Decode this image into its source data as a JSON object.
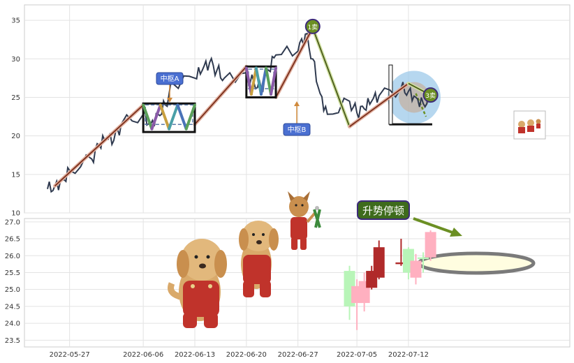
{
  "colors": {
    "price_line": "#2f3a4f",
    "trend_line": "#7a2e1a",
    "pivot_box": "#111111",
    "pivot_label_bg": "#4a6fd1",
    "signal_bg": "#6b8f23",
    "signal_border": "#3d2a7a",
    "trend_label_bg": "#3e6b1c",
    "arrow": "#6b8f23",
    "ellipse": "#7a7a7a",
    "ellipse_fill": "#fffde0",
    "candle_up_light": "#b8f5b8",
    "candle_down_light": "#ffb0c0",
    "candle_dark": "#b02a2a",
    "circle_fill": "#9ec9ea"
  },
  "top_chart": {
    "ylim": [
      10,
      37
    ],
    "yticks": [
      "10",
      "15",
      "20",
      "25",
      "30",
      "35"
    ],
    "pivot_a_label": "中枢A",
    "pivot_b_label": "中枢B",
    "signal_1": "1卖",
    "signal_3": "3卖"
  },
  "bottom_chart": {
    "ylim": [
      23.3,
      27.1
    ],
    "yticks": [
      "23.5",
      "24.0",
      "24.5",
      "25.0",
      "25.5",
      "26.0",
      "26.5",
      "27.0"
    ],
    "trend_label": "升势停顿"
  },
  "x_axis": {
    "ticks": [
      "2022-05-27",
      "2022-06-06",
      "2022-06-13",
      "2022-06-20",
      "2022-06-27",
      "2022-07-05",
      "2022-07-12"
    ]
  },
  "chart_data": [
    {
      "type": "line",
      "title": "",
      "xlabel": "",
      "ylabel": "",
      "ylim": [
        10,
        37
      ],
      "grid": true,
      "x": [
        "2022-05-24",
        "2022-05-25",
        "2022-05-26",
        "2022-05-27",
        "2022-05-30",
        "2022-05-31",
        "2022-06-01",
        "2022-06-02",
        "2022-06-03",
        "2022-06-06",
        "2022-06-07",
        "2022-06-08",
        "2022-06-09",
        "2022-06-10",
        "2022-06-13",
        "2022-06-14",
        "2022-06-15",
        "2022-06-16",
        "2022-06-17",
        "2022-06-20",
        "2022-06-21",
        "2022-06-22",
        "2022-06-23",
        "2022-06-24",
        "2022-06-27",
        "2022-06-28",
        "2022-06-29",
        "2022-06-30",
        "2022-07-01",
        "2022-07-04",
        "2022-07-05",
        "2022-07-06",
        "2022-07-07",
        "2022-07-08",
        "2022-07-11",
        "2022-07-12",
        "2022-07-13",
        "2022-07-14",
        "2022-07-15"
      ],
      "series": [
        {
          "values": [
            13.1,
            13.5,
            14.2,
            15.5,
            17.0,
            18.8,
            19.6,
            19.4,
            21.5,
            22.8,
            21.5,
            22.8,
            24.0,
            26.8,
            27.5,
            28.5,
            29.5,
            28.5,
            27.5,
            28.2,
            27.0,
            26.2,
            28.5,
            30.5,
            31.0,
            33.2,
            30.0,
            25.5,
            22.8,
            24.5,
            23.0,
            23.5,
            24.5,
            25.2,
            26.2,
            25.8,
            25.0,
            24.2,
            25.0
          ]
        }
      ],
      "segments": [
        {
          "from": [
            "2022-05-25",
            13.5
          ],
          "to": [
            "2022-06-06",
            24.0
          ]
        },
        {
          "from": [
            "2022-06-13",
            21.5
          ],
          "to": [
            "2022-06-20",
            29.0
          ]
        },
        {
          "from": [
            "2022-06-24",
            25.0
          ],
          "to": [
            "2022-06-29",
            34.0
          ]
        },
        {
          "from": [
            "2022-06-29",
            34.0
          ],
          "to": [
            "2022-07-04",
            21.2
          ]
        },
        {
          "from": [
            "2022-07-04",
            21.2
          ],
          "to": [
            "2022-07-12",
            26.8
          ]
        },
        {
          "from": [
            "2022-07-12",
            26.8
          ],
          "to": [
            "2022-07-15",
            25.3
          ]
        }
      ],
      "pivots": [
        {
          "name": "中枢A",
          "x_start": "2022-06-06",
          "x_end": "2022-06-13",
          "low": 20.5,
          "high": 24.2
        },
        {
          "name": "中枢B",
          "x_start": "2022-06-20",
          "x_end": "2022-06-24",
          "low": 25.0,
          "high": 29.0
        }
      ],
      "signals": [
        {
          "label": "1卖",
          "x": "2022-06-29",
          "y": 34.2
        },
        {
          "label": "3卖",
          "x": "2022-07-15",
          "y": 25.3
        }
      ]
    },
    {
      "type": "bar",
      "subtype": "candlestick",
      "title": "",
      "xlabel": "",
      "ylabel": "",
      "ylim": [
        23.3,
        27.1
      ],
      "grid": true,
      "annotation": "升势停顿",
      "candles": [
        {
          "date": "2022-07-04",
          "open": 24.5,
          "close": 25.55,
          "high": 25.7,
          "low": 24.1,
          "style": "up_light"
        },
        {
          "date": "2022-07-05",
          "open": 25.1,
          "close": 24.6,
          "high": 25.3,
          "low": 23.8,
          "style": "down_light"
        },
        {
          "date": "2022-07-06",
          "open": 25.25,
          "close": 24.6,
          "high": 25.5,
          "low": 24.35,
          "style": "down_light"
        },
        {
          "date": "2022-07-07",
          "open": 25.05,
          "close": 25.55,
          "high": 25.7,
          "low": 25.0,
          "style": "dark"
        },
        {
          "date": "2022-07-08",
          "open": 26.25,
          "close": 25.35,
          "high": 26.45,
          "low": 25.3,
          "style": "dark"
        },
        {
          "date": "2022-07-11",
          "open": 25.8,
          "close": 25.75,
          "high": 26.5,
          "low": 25.7,
          "style": "dark"
        },
        {
          "date": "2022-07-12",
          "open": 25.5,
          "close": 26.2,
          "high": 26.25,
          "low": 25.3,
          "style": "up_light"
        },
        {
          "date": "2022-07-13",
          "open": 25.85,
          "close": 25.35,
          "high": 26.05,
          "low": 25.15,
          "style": "down_light"
        },
        {
          "date": "2022-07-14",
          "open": 25.9,
          "close": 25.95,
          "high": 26.1,
          "low": 25.5,
          "style": "up_light"
        },
        {
          "date": "2022-07-15",
          "open": 26.7,
          "close": 25.95,
          "high": 26.75,
          "low": 25.85,
          "style": "down_light"
        }
      ]
    }
  ]
}
